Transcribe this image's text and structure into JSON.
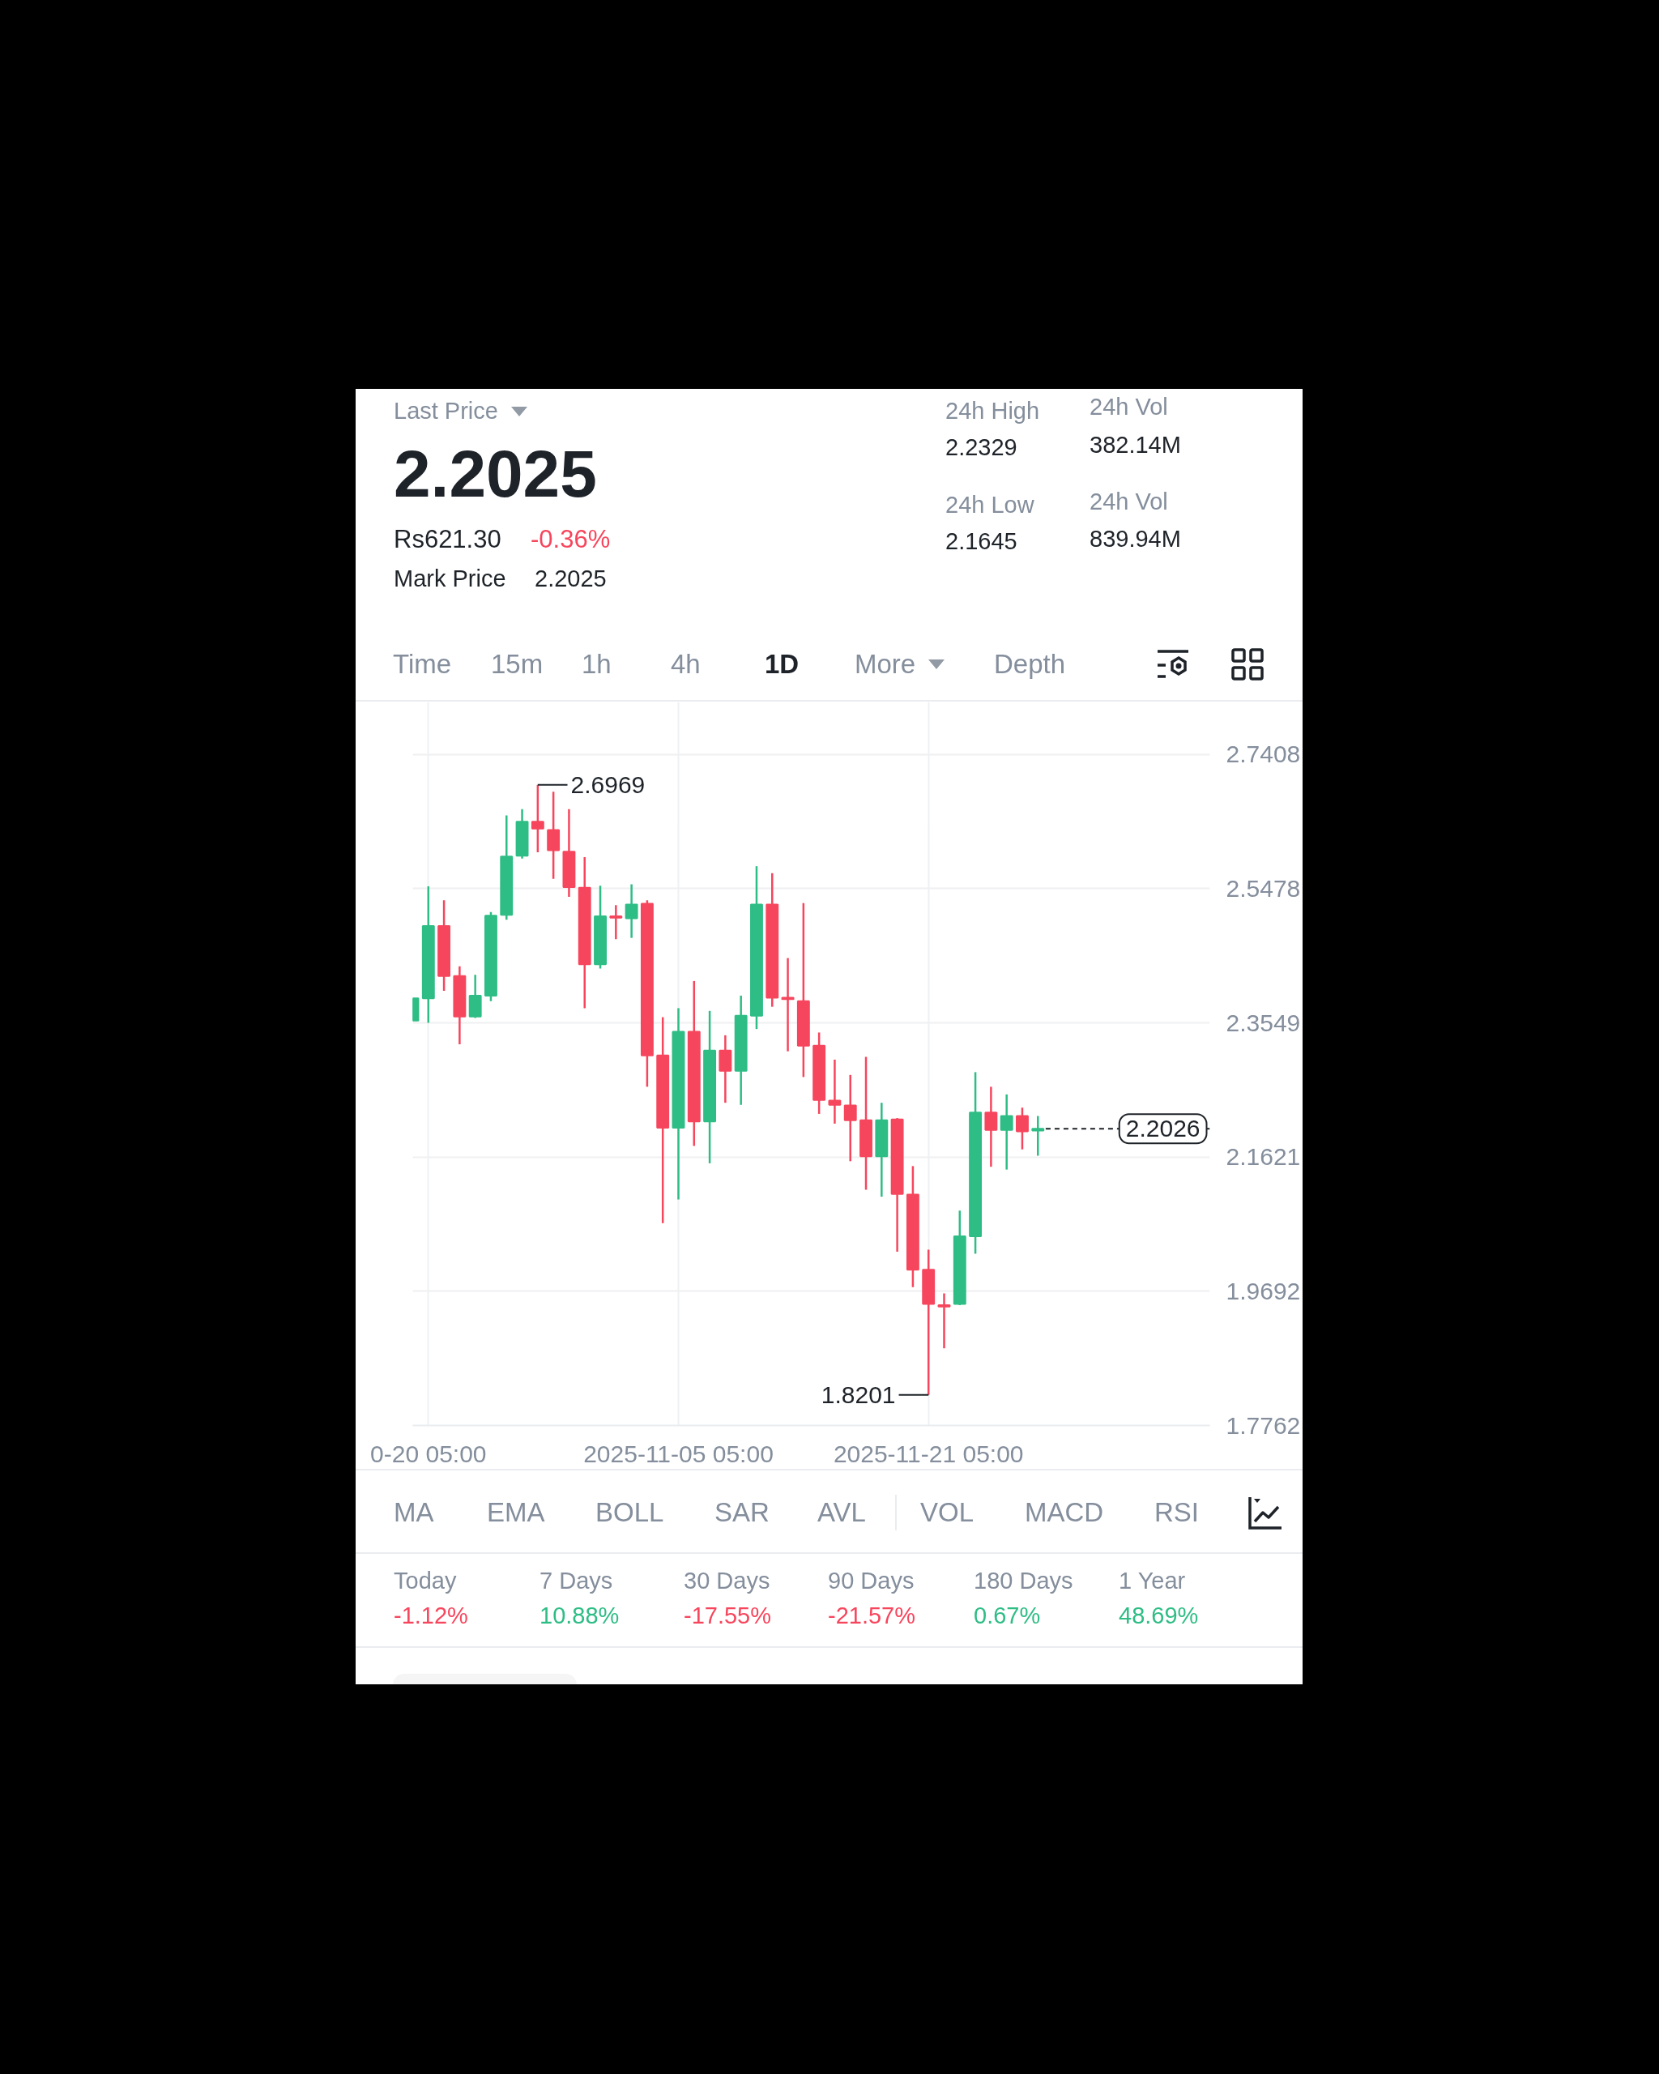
{
  "chart_data": {
    "type": "candlestick",
    "x": [
      "2025-10-19T05:00",
      "2025-10-20T05:00",
      "2025-10-21T05:00",
      "2025-10-22T05:00",
      "2025-10-23T05:00",
      "2025-10-24T05:00",
      "2025-10-25T05:00",
      "2025-10-26T05:00",
      "2025-10-27T05:00",
      "2025-10-28T05:00",
      "2025-10-29T05:00",
      "2025-10-30T05:00",
      "2025-10-31T05:00",
      "2025-11-01T05:00",
      "2025-11-02T05:00",
      "2025-11-03T05:00",
      "2025-11-04T05:00",
      "2025-11-05T05:00",
      "2025-11-06T05:00",
      "2025-11-07T05:00",
      "2025-11-08T05:00",
      "2025-11-09T05:00",
      "2025-11-10T05:00",
      "2025-11-11T05:00",
      "2025-11-12T05:00",
      "2025-11-13T05:00",
      "2025-11-14T05:00",
      "2025-11-15T05:00",
      "2025-11-16T05:00",
      "2025-11-17T05:00",
      "2025-11-18T05:00",
      "2025-11-19T05:00",
      "2025-11-20T05:00",
      "2025-11-21T05:00",
      "2025-11-22T05:00",
      "2025-11-23T05:00",
      "2025-11-24T05:00",
      "2025-11-25T05:00",
      "2025-11-26T05:00",
      "2025-11-27T05:00",
      "2025-11-28T05:00"
    ],
    "ohlc": [
      [
        2.358,
        2.39,
        2.358,
        2.39
      ],
      [
        2.39,
        2.551,
        2.355,
        2.494
      ],
      [
        2.494,
        2.531,
        2.401,
        2.422
      ],
      [
        2.422,
        2.436,
        2.324,
        2.364
      ],
      [
        2.364,
        2.424,
        2.362,
        2.394
      ],
      [
        2.394,
        2.514,
        2.386,
        2.509
      ],
      [
        2.51,
        2.653,
        2.503,
        2.594
      ],
      [
        2.595,
        2.662,
        2.591,
        2.644
      ],
      [
        2.644,
        2.6969,
        2.6,
        2.634
      ],
      [
        2.632,
        2.687,
        2.562,
        2.603
      ],
      [
        2.601,
        2.662,
        2.536,
        2.55
      ],
      [
        2.549,
        2.593,
        2.376,
        2.439
      ],
      [
        2.439,
        2.552,
        2.433,
        2.508
      ],
      [
        2.508,
        2.524,
        2.475,
        2.506
      ],
      [
        2.505,
        2.554,
        2.477,
        2.525
      ],
      [
        2.526,
        2.531,
        2.263,
        2.308
      ],
      [
        2.308,
        2.363,
        2.067,
        2.204
      ],
      [
        2.204,
        2.376,
        2.101,
        2.342
      ],
      [
        2.342,
        2.415,
        2.178,
        2.213
      ],
      [
        2.213,
        2.372,
        2.153,
        2.315
      ],
      [
        2.315,
        2.337,
        2.24,
        2.286
      ],
      [
        2.286,
        2.394,
        2.237,
        2.365
      ],
      [
        2.365,
        2.58,
        2.346,
        2.525
      ],
      [
        2.525,
        2.57,
        2.378,
        2.391
      ],
      [
        2.391,
        2.448,
        2.314,
        2.389
      ],
      [
        2.386,
        2.527,
        2.277,
        2.322
      ],
      [
        2.322,
        2.341,
        2.224,
        2.244
      ],
      [
        2.243,
        2.302,
        2.21,
        2.237
      ],
      [
        2.236,
        2.28,
        2.156,
        2.215
      ],
      [
        2.215,
        2.306,
        2.115,
        2.163
      ],
      [
        2.163,
        2.24,
        2.105,
        2.215
      ],
      [
        2.216,
        2.218,
        2.026,
        2.109
      ],
      [
        2.108,
        2.149,
        1.975,
        2.0
      ],
      [
        2.0,
        2.029,
        1.8201,
        1.951
      ],
      [
        1.949,
        1.966,
        1.887,
        1.947
      ],
      [
        1.951,
        2.085,
        1.949,
        2.048
      ],
      [
        2.048,
        2.284,
        2.023,
        2.226
      ],
      [
        2.226,
        2.263,
        2.148,
        2.201
      ],
      [
        2.201,
        2.252,
        2.144,
        2.221
      ],
      [
        2.221,
        2.233,
        2.173,
        2.199
      ],
      [
        2.2,
        2.221,
        2.164,
        2.2026
      ]
    ],
    "colors": [
      "#2ebd85",
      "#2ebd85",
      "#f6465d",
      "#f6465d",
      "#2ebd85",
      "#2ebd85",
      "#2ebd85",
      "#2ebd85",
      "#f6465d",
      "#f6465d",
      "#f6465d",
      "#f6465d",
      "#2ebd85",
      "#f6465d",
      "#2ebd85",
      "#f6465d",
      "#f6465d",
      "#2ebd85",
      "#f6465d",
      "#2ebd85",
      "#f6465d",
      "#2ebd85",
      "#2ebd85",
      "#f6465d",
      "#f6465d",
      "#f6465d",
      "#f6465d",
      "#f6465d",
      "#f6465d",
      "#f6465d",
      "#2ebd85",
      "#f6465d",
      "#f6465d",
      "#f6465d",
      "#f6465d",
      "#2ebd85",
      "#2ebd85",
      "#f6465d",
      "#2ebd85",
      "#f6465d",
      "#2ebd85"
    ],
    "xlim": [
      "2025-10-19T05:00",
      "2025-12-09T05:00"
    ],
    "ylim": [
      1.7762,
      2.816
    ],
    "xticks": [
      {
        "value": "2025-10-20T05:00",
        "label": "0-20 05:00"
      },
      {
        "value": "2025-11-05T05:00",
        "label": "2025-11-05 05:00"
      },
      {
        "value": "2025-11-21T05:00",
        "label": "2025-11-21 05:00"
      }
    ],
    "yticks": [
      1.7762,
      1.9692,
      2.1621,
      2.3549,
      2.5478,
      2.7408
    ],
    "grid": true,
    "ref_lines": [
      {
        "axis": "y",
        "value": 2.2026,
        "label": "2.2026",
        "line_style": "dashed",
        "color": "#1e2329"
      }
    ],
    "annotations": [
      "Last Price",
      "2.2025",
      "Rs621.30",
      "-0.36%",
      "Mark Price",
      "2.2025",
      "24h High",
      "2.2329",
      "24h Low",
      "2.1645",
      "24h Vol",
      "382.14M",
      "24h Vol",
      "839.94M",
      "Time",
      "15m",
      "1h",
      "4h",
      "1D",
      "More",
      "Depth",
      "MA",
      "EMA",
      "BOLL",
      "SAR",
      "AVL",
      "VOL",
      "MACD",
      "RSI",
      "Today",
      "-1.12%",
      "7 Days",
      "10.88%",
      "30 Days",
      "-17.55%",
      "90 Days",
      "-21.57%",
      "180 Days",
      "0.67%",
      "1 Year",
      "48.69%",
      {
        "text": "2.6969",
        "x": "2025-10-27T05:00",
        "y": 2.6969
      },
      {
        "text": "1.8201",
        "x": "2025-11-21T05:00",
        "y": 1.8201
      }
    ]
  }
}
